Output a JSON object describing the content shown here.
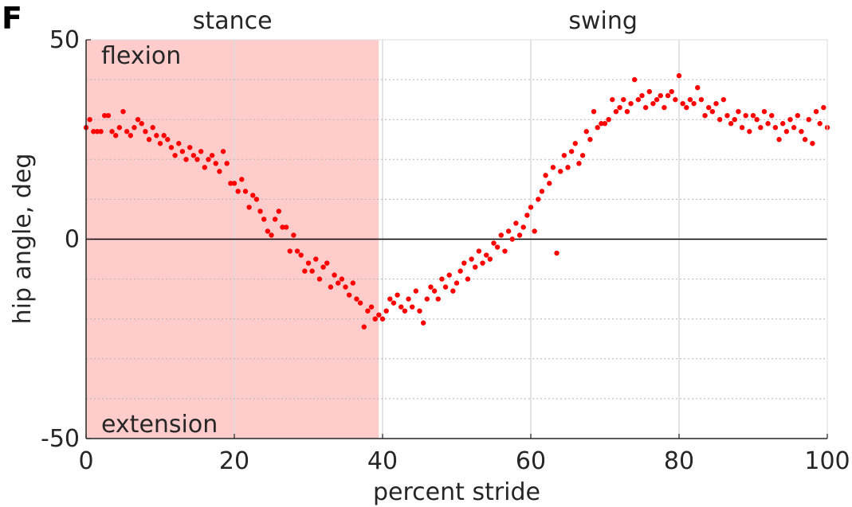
{
  "panel_label": "F",
  "chart_data": {
    "type": "scatter",
    "title": "",
    "xlabel": "percent stride",
    "ylabel": "hip angle, deg",
    "xlim": [
      0,
      100
    ],
    "ylim": [
      -50,
      50
    ],
    "xticks": [
      0,
      20,
      40,
      60,
      80,
      100
    ],
    "yticks": [
      -50,
      0,
      50
    ],
    "ytick_labels": [
      "-50",
      "0",
      "50"
    ],
    "grid": true,
    "phases": [
      {
        "label": "stance",
        "x_start": 0,
        "x_end": 39.5,
        "color": "#ffcccc"
      },
      {
        "label": "swing",
        "x_start": 39.5,
        "x_end": 100,
        "color": "#ffffff"
      }
    ],
    "annotations": [
      {
        "text": "flexion"
      },
      {
        "text": "extension"
      }
    ],
    "marker_color": "#ff0000",
    "series": [
      {
        "points": [
          [
            0,
            28
          ],
          [
            0.5,
            30
          ],
          [
            1,
            27
          ],
          [
            1.5,
            27
          ],
          [
            2,
            27
          ],
          [
            2.5,
            31
          ],
          [
            3,
            31
          ],
          [
            3.5,
            27
          ],
          [
            4,
            26
          ],
          [
            4.5,
            28
          ],
          [
            5,
            32
          ],
          [
            5.5,
            27
          ],
          [
            6,
            26
          ],
          [
            6.5,
            28
          ],
          [
            7,
            30
          ],
          [
            7.5,
            29
          ],
          [
            8,
            27
          ],
          [
            8.5,
            25
          ],
          [
            9,
            28
          ],
          [
            9.5,
            26
          ],
          [
            10,
            24
          ],
          [
            10.5,
            26
          ],
          [
            11,
            25
          ],
          [
            11.5,
            23
          ],
          [
            12,
            21
          ],
          [
            12.5,
            24
          ],
          [
            13,
            22
          ],
          [
            13.5,
            20
          ],
          [
            14,
            23
          ],
          [
            14.5,
            21
          ],
          [
            15,
            20
          ],
          [
            15.5,
            22
          ],
          [
            16,
            18
          ],
          [
            16.5,
            20
          ],
          [
            17,
            21
          ],
          [
            17.5,
            19
          ],
          [
            18,
            17
          ],
          [
            18.5,
            22
          ],
          [
            19,
            19
          ],
          [
            19.5,
            14
          ],
          [
            20,
            14
          ],
          [
            20.5,
            12
          ],
          [
            21,
            15
          ],
          [
            21.5,
            12
          ],
          [
            22,
            8
          ],
          [
            22.5,
            11
          ],
          [
            23,
            10
          ],
          [
            23.5,
            7
          ],
          [
            24,
            5
          ],
          [
            24.5,
            2
          ],
          [
            25,
            1
          ],
          [
            25.5,
            5
          ],
          [
            26,
            7
          ],
          [
            26.5,
            3
          ],
          [
            27,
            3
          ],
          [
            27.5,
            -3
          ],
          [
            28,
            1
          ],
          [
            28.5,
            -3
          ],
          [
            29,
            -4
          ],
          [
            29.5,
            -8
          ],
          [
            30,
            -6
          ],
          [
            30.5,
            -8
          ],
          [
            31,
            -5
          ],
          [
            31.5,
            -10
          ],
          [
            32,
            -7
          ],
          [
            32.5,
            -6
          ],
          [
            33,
            -12
          ],
          [
            33.5,
            -9
          ],
          [
            34,
            -11
          ],
          [
            34.5,
            -10
          ],
          [
            35,
            -12
          ],
          [
            35.5,
            -14
          ],
          [
            36,
            -11
          ],
          [
            36.5,
            -15
          ],
          [
            37,
            -16
          ],
          [
            37.5,
            -22
          ],
          [
            38,
            -18
          ],
          [
            38.5,
            -17
          ],
          [
            39,
            -20
          ],
          [
            39.5,
            -19
          ],
          [
            40,
            -20
          ],
          [
            40.5,
            -18
          ],
          [
            41,
            -15
          ],
          [
            41.5,
            -16
          ],
          [
            42,
            -14
          ],
          [
            42.5,
            -17
          ],
          [
            43,
            -18
          ],
          [
            43.5,
            -15
          ],
          [
            44,
            -17
          ],
          [
            44.5,
            -13
          ],
          [
            45,
            -18
          ],
          [
            45.5,
            -21
          ],
          [
            46,
            -15
          ],
          [
            46.5,
            -12
          ],
          [
            47,
            -13
          ],
          [
            47.5,
            -15
          ],
          [
            48,
            -10
          ],
          [
            48.5,
            -12
          ],
          [
            49,
            -9
          ],
          [
            49.5,
            -13
          ],
          [
            50,
            -11
          ],
          [
            50.5,
            -8
          ],
          [
            51,
            -6
          ],
          [
            51.5,
            -10
          ],
          [
            52,
            -5
          ],
          [
            52.5,
            -7
          ],
          [
            53,
            -3
          ],
          [
            53.5,
            -6
          ],
          [
            54,
            -4
          ],
          [
            54.5,
            -5
          ],
          [
            55,
            -1
          ],
          [
            55.5,
            -2
          ],
          [
            56,
            1
          ],
          [
            56.5,
            -3
          ],
          [
            57,
            2
          ],
          [
            57.5,
            0
          ],
          [
            58,
            4
          ],
          [
            58.5,
            1
          ],
          [
            59,
            3
          ],
          [
            59.5,
            6
          ],
          [
            60,
            8
          ],
          [
            60.5,
            2
          ],
          [
            61,
            10
          ],
          [
            61.5,
            12
          ],
          [
            62,
            16
          ],
          [
            62.5,
            14
          ],
          [
            63,
            18
          ],
          [
            63.5,
            -3.5
          ],
          [
            64,
            17
          ],
          [
            64.5,
            21
          ],
          [
            65,
            18
          ],
          [
            65.5,
            22
          ],
          [
            66,
            24
          ],
          [
            66.5,
            19
          ],
          [
            67,
            21
          ],
          [
            67.5,
            27
          ],
          [
            68,
            25
          ],
          [
            68.5,
            32
          ],
          [
            69,
            28
          ],
          [
            69.5,
            29
          ],
          [
            70,
            29
          ],
          [
            70.5,
            30
          ],
          [
            71,
            35
          ],
          [
            71.5,
            32
          ],
          [
            72,
            33
          ],
          [
            72.5,
            35
          ],
          [
            73,
            32
          ],
          [
            73.5,
            34
          ],
          [
            74,
            40
          ],
          [
            74.5,
            35
          ],
          [
            75,
            36
          ],
          [
            75.5,
            33
          ],
          [
            76,
            37
          ],
          [
            76.5,
            34
          ],
          [
            77,
            35
          ],
          [
            77.5,
            36
          ],
          [
            78,
            33
          ],
          [
            78.5,
            36
          ],
          [
            79,
            37
          ],
          [
            79.5,
            35
          ],
          [
            80,
            41
          ],
          [
            80.5,
            34
          ],
          [
            81,
            33
          ],
          [
            81.5,
            35
          ],
          [
            82,
            34
          ],
          [
            82.5,
            38
          ],
          [
            83,
            35
          ],
          [
            83.5,
            31
          ],
          [
            84,
            33
          ],
          [
            84.5,
            32
          ],
          [
            85,
            34
          ],
          [
            85.5,
            30
          ],
          [
            86,
            35
          ],
          [
            86.5,
            31
          ],
          [
            87,
            29
          ],
          [
            87.5,
            30
          ],
          [
            88,
            32
          ],
          [
            88.5,
            28
          ],
          [
            89,
            31
          ],
          [
            89.5,
            27
          ],
          [
            90,
            31
          ],
          [
            90.5,
            30
          ],
          [
            91,
            28
          ],
          [
            91.5,
            32
          ],
          [
            92,
            29
          ],
          [
            92.5,
            31
          ],
          [
            93,
            28
          ],
          [
            93.5,
            25
          ],
          [
            94,
            29
          ],
          [
            94.5,
            27
          ],
          [
            95,
            30
          ],
          [
            95.5,
            28
          ],
          [
            96,
            31
          ],
          [
            96.5,
            27
          ],
          [
            97,
            25
          ],
          [
            97.5,
            30
          ],
          [
            98,
            24
          ],
          [
            98.5,
            32
          ],
          [
            99,
            29
          ],
          [
            99.5,
            33
          ],
          [
            100,
            28
          ]
        ]
      }
    ]
  }
}
